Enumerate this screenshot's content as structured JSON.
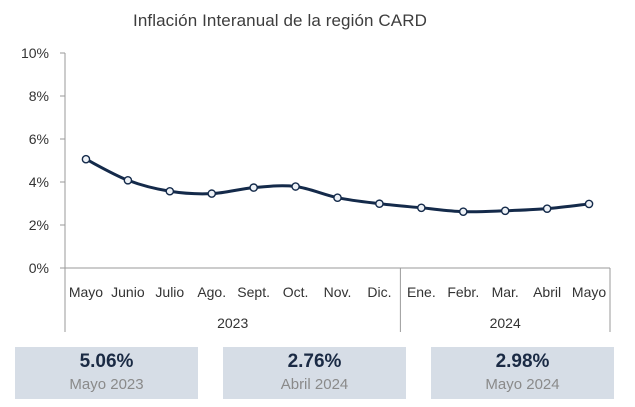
{
  "chart_data": {
    "type": "line",
    "title": "Inflación Interanual de la región CARD",
    "categories": [
      "Mayo",
      "Junio",
      "Julio",
      "Ago.",
      "Sept.",
      "Oct.",
      "Nov.",
      "Dic.",
      "Ene.",
      "Febr.",
      "Mar.",
      "Abril",
      "Mayo"
    ],
    "groups": [
      {
        "label": "2023",
        "start": 0,
        "end": 7
      },
      {
        "label": "2024",
        "start": 8,
        "end": 12
      }
    ],
    "series": [
      {
        "values": [
          5.06,
          4.08,
          3.57,
          3.46,
          3.74,
          3.79,
          3.27,
          2.99,
          2.8,
          2.62,
          2.66,
          2.76,
          2.98
        ]
      }
    ],
    "ylim": [
      0,
      10
    ],
    "yticks": [
      "0%",
      "2%",
      "4%",
      "6%",
      "8%",
      "10%"
    ],
    "grid": false,
    "line_color": "#142a4a"
  },
  "summary": [
    {
      "value": "5.06%",
      "label": "Mayo 2023"
    },
    {
      "value": "2.76%",
      "label": "Abril 2024"
    },
    {
      "value": "2.98%",
      "label": "Mayo 2024"
    }
  ]
}
